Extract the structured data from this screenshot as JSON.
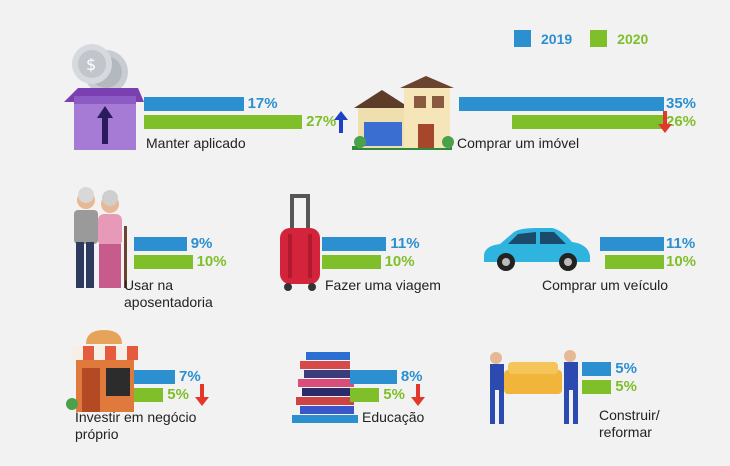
{
  "colors": {
    "y2019": "#2b8fd0",
    "y2020": "#7fbf2a",
    "up": "#1f3fc7",
    "down": "#e2382b"
  },
  "legend": {
    "s2019": "2019",
    "s2020": "2020"
  },
  "chart_data": {
    "type": "bar",
    "series": [
      {
        "name": "2019",
        "values": [
          17,
          35,
          9,
          11,
          11,
          7,
          8,
          5
        ]
      },
      {
        "name": "2020",
        "values": [
          27,
          26,
          10,
          10,
          10,
          5,
          5,
          5
        ]
      }
    ],
    "categories": [
      "Manter aplicado",
      "Comprar um imóvel",
      "Usar na aposentadoria",
      "Fazer uma viagem",
      "Comprar um veículo",
      "Investir em negócio próprio",
      "Educação",
      "Construir/ reformar"
    ],
    "items": [
      {
        "label_lines": [
          "Manter aplicado"
        ],
        "v2019": "17%",
        "v2020": "27%",
        "trend": "up"
      },
      {
        "label_lines": [
          "Comprar um imóvel"
        ],
        "v2019": "35%",
        "v2020": "26%",
        "trend": "down"
      },
      {
        "label_lines": [
          "Usar na",
          "aposentadoria"
        ],
        "v2019": "9%",
        "v2020": "10%",
        "trend": ""
      },
      {
        "label_lines": [
          "Fazer uma viagem"
        ],
        "v2019": "11%",
        "v2020": "10%",
        "trend": ""
      },
      {
        "label_lines": [
          "Comprar um veículo"
        ],
        "v2019": "11%",
        "v2020": "10%",
        "trend": ""
      },
      {
        "label_lines": [
          "Investir em negócio",
          "próprio"
        ],
        "v2019": "7%",
        "v2020": "5%",
        "trend": "down"
      },
      {
        "label_lines": [
          "Educação"
        ],
        "v2019": "8%",
        "v2020": "5%",
        "trend": "down"
      },
      {
        "label_lines": [
          "Construir/",
          "reformar"
        ],
        "v2019": "5%",
        "v2020": "5%",
        "trend": ""
      }
    ]
  }
}
